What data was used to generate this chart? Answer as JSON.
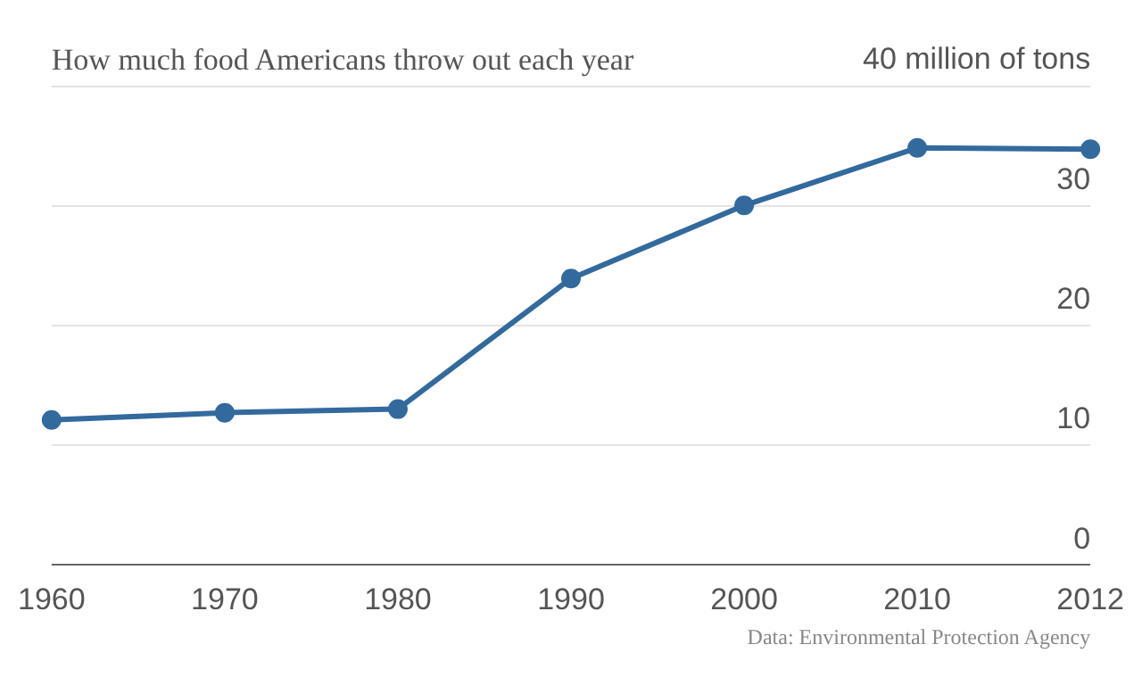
{
  "chart_data": {
    "type": "line",
    "title": "How much food Americans throw out each year",
    "categories": [
      "1960",
      "1970",
      "1980",
      "1990",
      "2000",
      "2010",
      "2012"
    ],
    "series": [
      {
        "color": "#336a9e",
        "values": [
          12.1,
          12.7,
          13.0,
          23.9,
          30.0,
          34.8,
          34.7
        ]
      }
    ],
    "ylim": [
      0,
      40
    ],
    "yticks": [
      0,
      10,
      20,
      30,
      {
        "value": 40,
        "label": "40 million of tons"
      }
    ],
    "grid": "y",
    "legend": false,
    "marker": "circle",
    "line_style": "solid",
    "annotations": [
      "Data: Environmental Protection Agency"
    ]
  }
}
